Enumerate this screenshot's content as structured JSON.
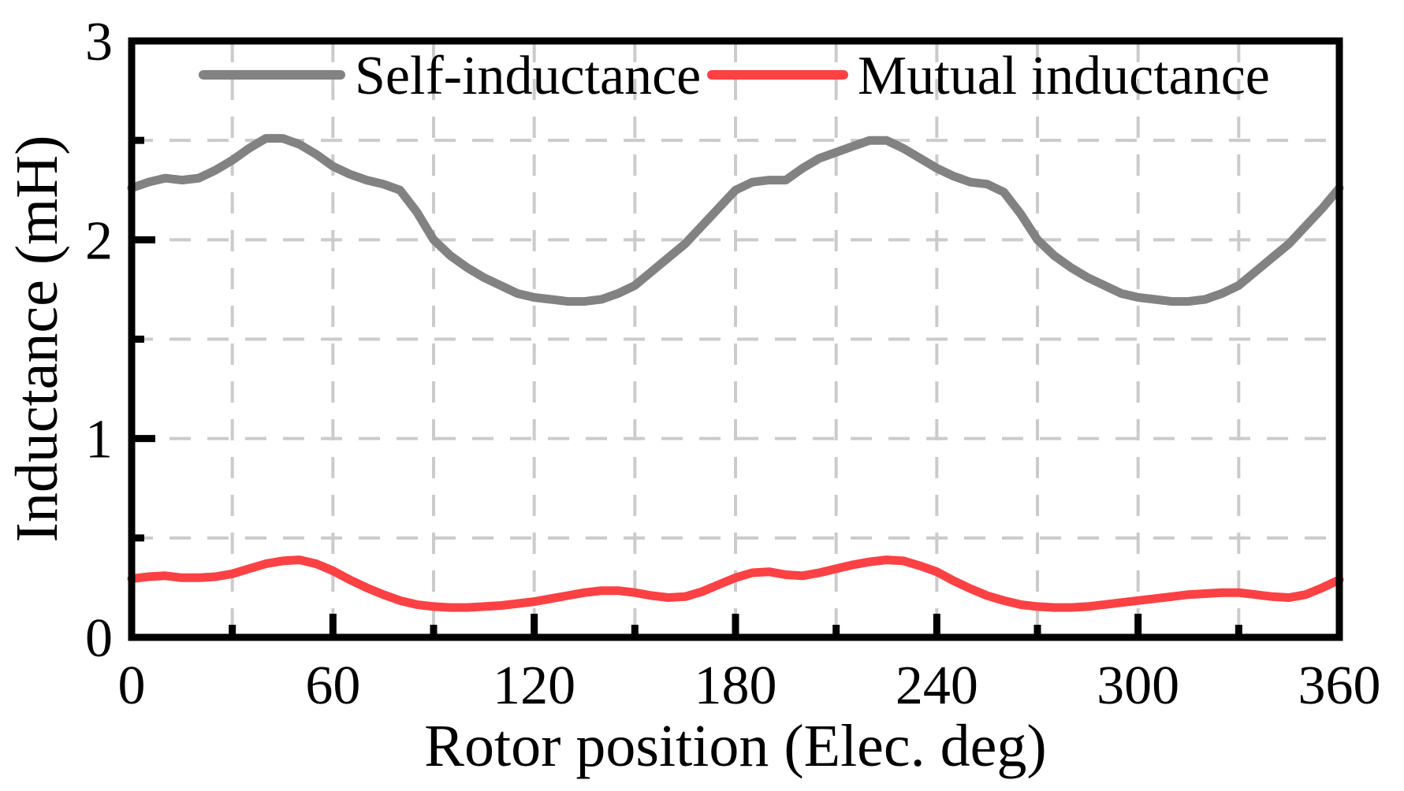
{
  "figure": {
    "x_axis_label": "Rotor position (Elec. deg)",
    "y_axis_label": "Inductance (mH)",
    "x_tick_labels": [
      "0",
      "60",
      "120",
      "180",
      "240",
      "300",
      "360"
    ],
    "y_tick_labels": [
      "0",
      "1",
      "2",
      "3"
    ],
    "frame_color": "#000000",
    "background_color": "#ffffff"
  },
  "legend": {
    "position": "top-inside",
    "items": [
      {
        "label": "Self-inductance",
        "color": "#828282"
      },
      {
        "label": "Mutual inductance",
        "color": "#fb4143"
      }
    ]
  },
  "chart_data": {
    "type": "line",
    "title": "",
    "xlabel": "Rotor position (Elec. deg)",
    "ylabel": "Inductance (mH)",
    "xlim": [
      0,
      360
    ],
    "ylim": [
      0,
      3
    ],
    "x_major_ticks": [
      0,
      60,
      120,
      180,
      240,
      300,
      360
    ],
    "x_minor_ticks": [
      30,
      90,
      150,
      210,
      270,
      330
    ],
    "y_major_ticks": [
      0,
      1,
      2,
      3
    ],
    "y_minor_ticks": [
      0.5,
      1.5,
      2.5
    ],
    "grid": {
      "style": "dashed",
      "color": "#cbcbcb",
      "x_values": [
        30,
        60,
        90,
        120,
        150,
        180,
        210,
        240,
        270,
        300,
        330
      ],
      "y_values": [
        0.5,
        1.0,
        1.5,
        2.0,
        2.5
      ]
    },
    "legend_position": "top-inside",
    "x": [
      0,
      5,
      10,
      15,
      20,
      25,
      30,
      35,
      40,
      45,
      50,
      55,
      60,
      65,
      70,
      75,
      80,
      85,
      90,
      95,
      100,
      105,
      110,
      115,
      120,
      125,
      130,
      135,
      140,
      145,
      150,
      155,
      160,
      165,
      170,
      175,
      180,
      185,
      190,
      195,
      200,
      205,
      210,
      215,
      220,
      225,
      230,
      235,
      240,
      245,
      250,
      255,
      260,
      265,
      270,
      275,
      280,
      285,
      290,
      295,
      300,
      305,
      310,
      315,
      320,
      325,
      330,
      335,
      340,
      345,
      350,
      355,
      360
    ],
    "series": [
      {
        "name": "Self-inductance",
        "color": "#828282",
        "values": [
          2.26,
          2.29,
          2.31,
          2.3,
          2.31,
          2.35,
          2.4,
          2.46,
          2.51,
          2.51,
          2.48,
          2.43,
          2.37,
          2.33,
          2.3,
          2.28,
          2.25,
          2.14,
          2.0,
          1.92,
          1.86,
          1.81,
          1.77,
          1.73,
          1.71,
          1.7,
          1.69,
          1.69,
          1.7,
          1.73,
          1.77,
          1.84,
          1.91,
          1.98,
          2.07,
          2.16,
          2.25,
          2.29,
          2.3,
          2.3,
          2.36,
          2.41,
          2.44,
          2.47,
          2.5,
          2.5,
          2.46,
          2.41,
          2.36,
          2.32,
          2.29,
          2.28,
          2.24,
          2.13,
          2.0,
          1.92,
          1.86,
          1.81,
          1.77,
          1.73,
          1.71,
          1.7,
          1.69,
          1.69,
          1.7,
          1.73,
          1.77,
          1.84,
          1.91,
          1.98,
          2.07,
          2.16,
          2.26
        ]
      },
      {
        "name": "Mutual inductance",
        "color": "#fb4143",
        "values": [
          0.295,
          0.305,
          0.31,
          0.3,
          0.3,
          0.305,
          0.32,
          0.345,
          0.37,
          0.385,
          0.39,
          0.37,
          0.335,
          0.29,
          0.25,
          0.215,
          0.185,
          0.165,
          0.155,
          0.15,
          0.15,
          0.155,
          0.16,
          0.17,
          0.18,
          0.195,
          0.21,
          0.225,
          0.235,
          0.235,
          0.225,
          0.21,
          0.2,
          0.205,
          0.23,
          0.265,
          0.3,
          0.325,
          0.33,
          0.315,
          0.31,
          0.325,
          0.345,
          0.365,
          0.38,
          0.39,
          0.385,
          0.36,
          0.33,
          0.285,
          0.245,
          0.21,
          0.185,
          0.165,
          0.155,
          0.15,
          0.15,
          0.155,
          0.165,
          0.175,
          0.185,
          0.195,
          0.205,
          0.215,
          0.22,
          0.225,
          0.225,
          0.215,
          0.205,
          0.2,
          0.215,
          0.25,
          0.29
        ]
      }
    ]
  }
}
